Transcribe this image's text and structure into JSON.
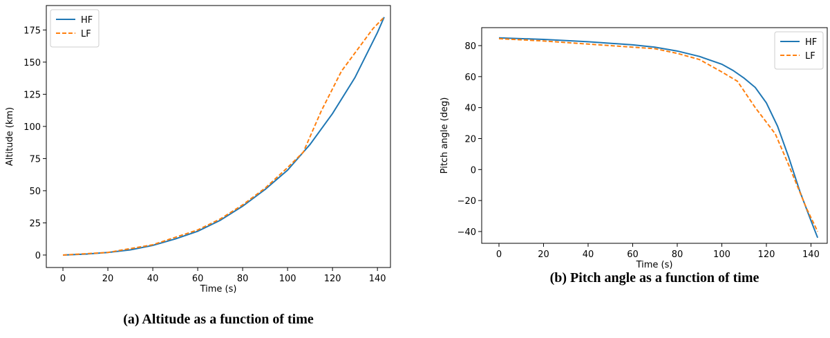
{
  "chart_data": [
    {
      "type": "line",
      "caption": "(a) Altitude as a function of time",
      "xlabel": "Time (s)",
      "ylabel": "Altitude (km)",
      "xlim": [
        -7.4,
        145.8
      ],
      "ylim": [
        -9.7,
        194
      ],
      "xticks": [
        0,
        20,
        40,
        60,
        80,
        100,
        120,
        140
      ],
      "yticks": [
        0,
        25,
        50,
        75,
        100,
        125,
        150,
        175
      ],
      "legend": "upper left",
      "series": [
        {
          "name": "HF",
          "color": "#1f77b4",
          "linestyle": "solid",
          "x": [
            0,
            10,
            20,
            30,
            40,
            50,
            60,
            70,
            80,
            90,
            100,
            107,
            110,
            120,
            130,
            140,
            143
          ],
          "values": [
            0,
            0.7,
            2,
            4,
            7.5,
            12.5,
            18.5,
            27,
            38,
            51,
            66,
            80,
            86,
            110,
            138,
            173,
            185
          ]
        },
        {
          "name": "LF",
          "color": "#ff7f0e",
          "linestyle": "dashed",
          "x": [
            0,
            20,
            40,
            60,
            70,
            80,
            90,
            100,
            107,
            115,
            124,
            138,
            143
          ],
          "values": [
            0,
            2,
            8,
            19.5,
            28,
            39,
            52,
            68,
            80,
            112,
            143,
            176,
            185
          ]
        }
      ]
    },
    {
      "type": "line",
      "caption": "(b) Pitch angle as a function of time",
      "xlabel": "Time (s)",
      "ylabel": "Pitch angle (deg)",
      "xlim": [
        -7.75,
        147.3
      ],
      "ylim": [
        -47.6,
        91.6
      ],
      "xticks": [
        0,
        20,
        40,
        60,
        80,
        100,
        120,
        140
      ],
      "yticks": [
        {
          "value": -40,
          "label": "−40"
        },
        {
          "value": -20,
          "label": "−20"
        },
        0,
        20,
        40,
        60,
        80
      ],
      "legend": "upper right",
      "series": [
        {
          "name": "HF",
          "color": "#1f77b4",
          "linestyle": "solid",
          "x": [
            0,
            20,
            40,
            60,
            70,
            80,
            90,
            100,
            105,
            110,
            115,
            120,
            125,
            130,
            135,
            140,
            143
          ],
          "values": [
            85,
            84,
            82.5,
            80.5,
            79,
            76.5,
            73,
            68,
            64,
            59,
            53,
            43,
            28,
            8,
            -14,
            -33,
            -44
          ]
        },
        {
          "name": "LF",
          "color": "#ff7f0e",
          "linestyle": "dashed",
          "x": [
            0,
            20,
            40,
            60,
            70,
            80,
            90,
            100,
            107,
            115,
            124,
            130,
            138,
            143
          ],
          "values": [
            84.5,
            83,
            81,
            79,
            78,
            75,
            71,
            63,
            57,
            40,
            23,
            3,
            -25,
            -40
          ]
        }
      ]
    }
  ]
}
